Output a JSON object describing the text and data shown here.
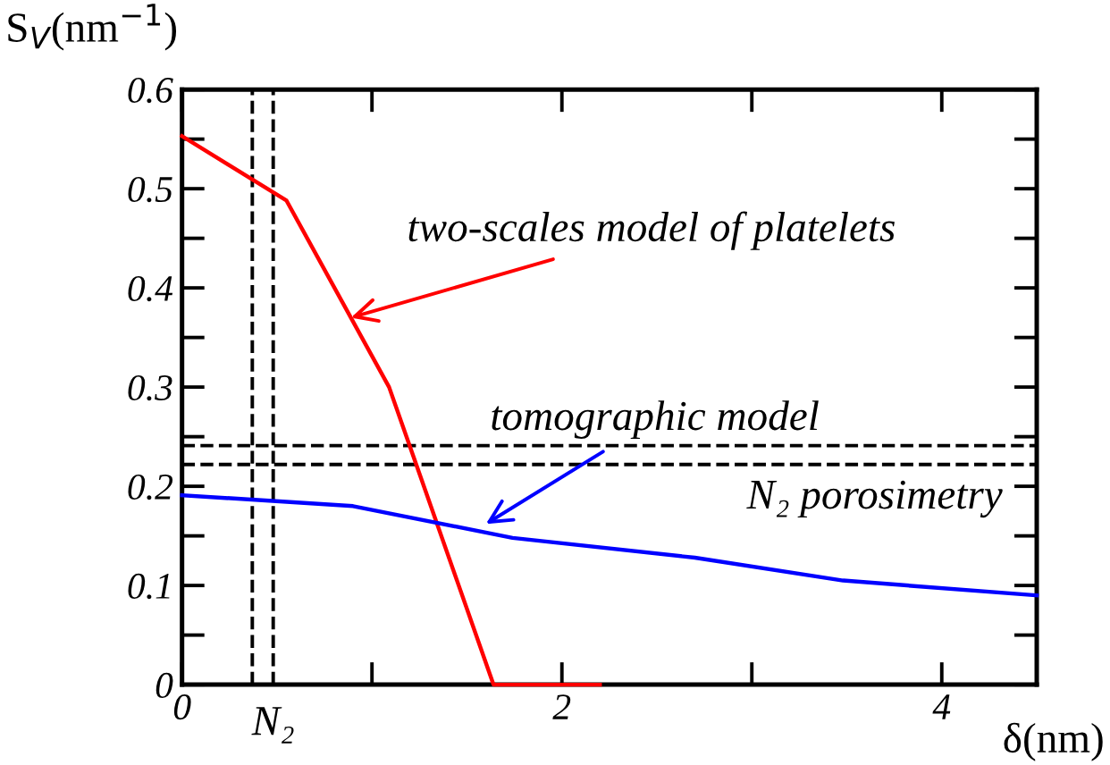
{
  "chart_data": {
    "type": "line",
    "xlabel": "δ(nm)",
    "ylabel": "S$_{V}$(nm$^{−1}$)",
    "series": [
      {
        "color": "#ff0000",
        "x": [
          0,
          0.55,
          1.09,
          1.64,
          2.2
        ],
        "values": [
          0.553,
          0.488,
          0.3,
          0,
          0
        ]
      },
      {
        "color": "#0000ff",
        "x": [
          0,
          0.9,
          1.74,
          2.7,
          3.48,
          4.5
        ],
        "values": [
          0.191,
          0.18,
          0.148,
          0.128,
          0.105,
          0.09
        ]
      }
    ],
    "xlim": [
      0,
      4.5
    ],
    "ylim": [
      0,
      0.6
    ],
    "xticks": [
      0,
      {
        "value": 1,
        "label": null
      },
      2,
      {
        "value": 3,
        "label": null
      },
      4
    ],
    "yticks": [
      0,
      {
        "value": 0.05,
        "label": null
      },
      0.1,
      {
        "value": 0.15,
        "label": null
      },
      0.2,
      {
        "value": 0.25,
        "label": null
      },
      0.3,
      {
        "value": 0.35,
        "label": null
      },
      0.4,
      {
        "value": 0.45,
        "label": null
      },
      0.5,
      {
        "value": 0.55,
        "label": null
      },
      0.6
    ],
    "ref_lines": [
      {
        "axis": "x",
        "value": 0.37,
        "label": null,
        "line_style": "dashed",
        "color": "#000000"
      },
      {
        "axis": "x",
        "value": 0.48,
        "label": "N₂",
        "line_style": "dashed",
        "color": "#000000"
      },
      {
        "axis": "y",
        "value": 0.241,
        "label": null,
        "line_style": "dashed",
        "color": "#000000"
      },
      {
        "axis": "y",
        "value": 0.222,
        "label": "N₂ porosimetry",
        "line_style": "dashed",
        "color": "#000000"
      }
    ],
    "annotations": [
      {
        "text": "two-scales model of platelets",
        "x": 0.89,
        "y": 0.37
      },
      {
        "text": "tomographic model",
        "x": 1.6,
        "y": 0.162
      }
    ],
    "grid": false,
    "legend": false,
    "marker": "none",
    "line_style": "solid"
  }
}
